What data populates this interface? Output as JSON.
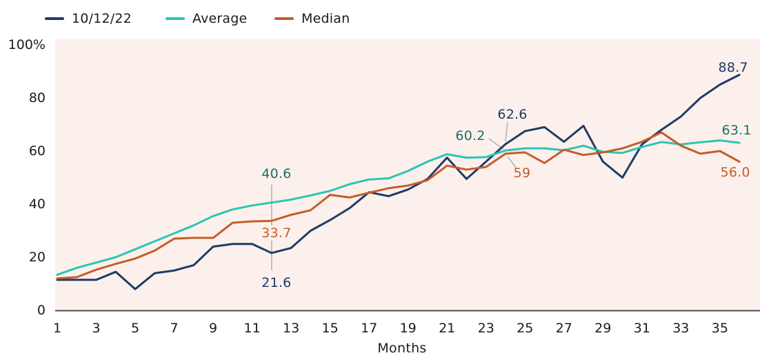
{
  "legend": [
    {
      "label": "10/12/22",
      "color_key": "navy"
    },
    {
      "label": "Average",
      "color_key": "teal"
    },
    {
      "label": "Median",
      "color_key": "orange"
    }
  ],
  "colors": {
    "navy": "#1f3b67",
    "teal": "#2cc5b2",
    "orange": "#c65c28",
    "navy_label": "#1f3864",
    "teal_label": "#1e6e62",
    "orange_label": "#c65c28",
    "plot_background": "#fbf0ec",
    "axis_line": "#4f4f4f",
    "leader_line": "#b5b2ae",
    "text": "#1c1c1c"
  },
  "chart_data": {
    "type": "line",
    "title": "",
    "xlabel": "Months",
    "ylabel": "",
    "x_range": [
      1,
      36
    ],
    "ylim": [
      0,
      100
    ],
    "grid": false,
    "legend_position": "top-left",
    "x_ticks": [
      1,
      3,
      5,
      7,
      9,
      11,
      13,
      15,
      17,
      19,
      21,
      23,
      25,
      27,
      29,
      31,
      33,
      35
    ],
    "y_ticks": [
      {
        "value": 0,
        "label": "0"
      },
      {
        "value": 20,
        "label": "20"
      },
      {
        "value": 40,
        "label": "40"
      },
      {
        "value": 60,
        "label": "60"
      },
      {
        "value": 80,
        "label": "80"
      },
      {
        "value": 100,
        "label": "100%"
      }
    ],
    "x": [
      1,
      2,
      3,
      4,
      5,
      6,
      7,
      8,
      9,
      10,
      11,
      12,
      13,
      14,
      15,
      16,
      17,
      18,
      19,
      20,
      21,
      22,
      23,
      24,
      25,
      26,
      27,
      28,
      29,
      30,
      31,
      32,
      33,
      34,
      35,
      36
    ],
    "series": [
      {
        "name": "10/12/22",
        "color_key": "navy",
        "values": [
          11.5,
          11.5,
          11.5,
          14.5,
          8,
          14,
          15,
          17,
          24,
          25,
          25,
          21.6,
          23.5,
          30,
          34,
          38.5,
          44.5,
          43,
          45.5,
          49.5,
          57.5,
          49.5,
          56,
          62.6,
          67.5,
          69,
          63.5,
          69.5,
          56,
          50,
          62.5,
          68,
          73,
          80,
          85,
          88.7
        ]
      },
      {
        "name": "Average",
        "color_key": "teal",
        "values": [
          13.4,
          16,
          18,
          20,
          23,
          26,
          29,
          32,
          35.5,
          38,
          39.5,
          40.6,
          41.7,
          43.3,
          45,
          47.5,
          49.3,
          49.7,
          52.5,
          56,
          58.8,
          57.5,
          57.7,
          60.2,
          61,
          61,
          60.3,
          62,
          59.7,
          59.3,
          61.5,
          63.4,
          62.5,
          63.3,
          64,
          63.1
        ]
      },
      {
        "name": "Median",
        "color_key": "orange",
        "values": [
          12,
          12.5,
          15.3,
          17.5,
          19.5,
          22.5,
          27,
          27.3,
          27.3,
          33,
          33.5,
          33.7,
          36,
          37.7,
          43.5,
          42.5,
          44.3,
          46,
          47,
          49,
          54.5,
          53,
          54,
          59,
          59.5,
          55.5,
          60.5,
          58.5,
          59.5,
          61,
          63.5,
          67,
          62,
          59,
          60,
          56
        ]
      }
    ],
    "annotations": [
      {
        "text": "40.6",
        "series": "Average",
        "month": 12,
        "value": 40.6,
        "color_key": "teal_label",
        "label_offset": [
          7,
          -42
        ],
        "leader": [
          [
            0,
            -26
          ],
          [
            0,
            98
          ]
        ],
        "boxed": false
      },
      {
        "text": "33.7",
        "series": "Median",
        "month": 12,
        "value": 33.7,
        "color_key": "orange_label",
        "label_offset": [
          7,
          18
        ],
        "leader": null,
        "boxed": true
      },
      {
        "text": "21.6",
        "series": "10/12/22",
        "month": 12,
        "value": 21.6,
        "color_key": "navy_label",
        "label_offset": [
          7,
          43
        ],
        "leader": null,
        "boxed": false
      },
      {
        "text": "62.6",
        "series": "10/12/22",
        "month": 24,
        "value": 62.6,
        "color_key": "navy_label",
        "label_offset": [
          10,
          -43
        ],
        "leader": [
          [
            3,
            -32
          ],
          [
            0,
            -4
          ]
        ],
        "boxed": false
      },
      {
        "text": "60.2",
        "series": "Average",
        "month": 24,
        "value": 60.2,
        "color_key": "teal_label",
        "label_offset": [
          -51,
          -21
        ],
        "leader": [
          [
            -24,
            -17
          ],
          [
            -3,
            -2
          ]
        ],
        "boxed": false
      },
      {
        "text": "59",
        "series": "Median",
        "month": 24,
        "value": 59,
        "color_key": "orange_label",
        "label_offset": [
          24,
          28
        ],
        "leader": [
          [
            3,
            4
          ],
          [
            15,
            20
          ]
        ],
        "boxed": false
      },
      {
        "text": "88.7",
        "series": "10/12/22",
        "month": 36,
        "value": 88.7,
        "color_key": "navy_label",
        "label_offset": [
          -9,
          -11
        ],
        "leader": null,
        "boxed": false
      },
      {
        "text": "63.1",
        "series": "Average",
        "month": 36,
        "value": 63.1,
        "color_key": "teal_label",
        "label_offset": [
          -4,
          -18
        ],
        "leader": null,
        "boxed": false
      },
      {
        "text": "56.0",
        "series": "Median",
        "month": 36,
        "value": 56,
        "color_key": "orange_label",
        "label_offset": [
          -6,
          16
        ],
        "leader": null,
        "boxed": false
      }
    ]
  }
}
